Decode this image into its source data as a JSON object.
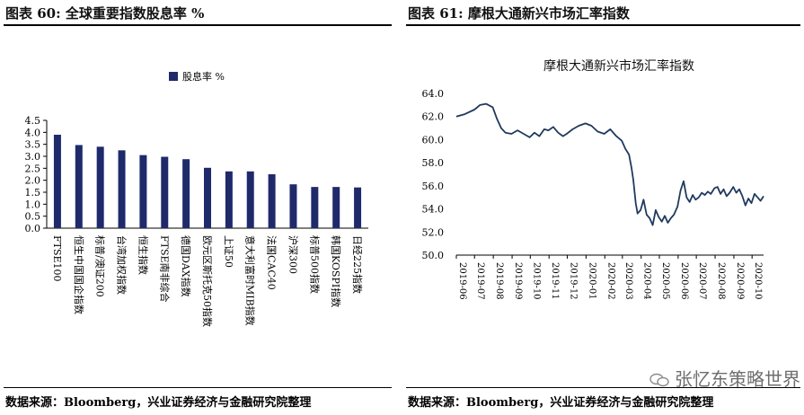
{
  "left": {
    "figure_title": "图表 60: 全球重要指数股息率 %",
    "source": "数据来源：Bloomberg，兴业证券经济与金融研究院整理"
  },
  "right": {
    "figure_title": "图表 61: 摩根大通新兴市场汇率指数",
    "source": "数据来源：Bloomberg，兴业证券经济与金融研究院整理"
  },
  "watermark": "张忆东策略世界",
  "colors": {
    "bar": "#1f2a6b",
    "line": "#1f3a5f"
  },
  "chart_data": [
    {
      "type": "bar",
      "legend": [
        "股息率 %"
      ],
      "legend_position": "top-center",
      "categories": [
        "FTSE100",
        "恒生中国国企指数",
        "标普/澳证200",
        "台湾加权指数",
        "恒生指数",
        "FTSE南非综合",
        "德国DAX指数",
        "欧元区斯托克50指数",
        "上证50",
        "意大利富时MIB指数",
        "法国CAC40",
        "沪深300",
        "标普500指数",
        "韩国KOSPI指数",
        "日经225指数"
      ],
      "values": [
        3.9,
        3.47,
        3.4,
        3.25,
        3.05,
        2.98,
        2.88,
        2.52,
        2.37,
        2.37,
        2.25,
        1.83,
        1.72,
        1.72,
        1.7
      ],
      "ylim": [
        0,
        4.5
      ],
      "yticks": [
        "0.0",
        "0.5",
        "1.0",
        "1.5",
        "2.0",
        "2.5",
        "3.0",
        "3.5",
        "4.0",
        "4.5"
      ]
    },
    {
      "type": "line",
      "title": "摩根大通新兴市场汇率指数",
      "ylim": [
        50,
        64
      ],
      "yticks": [
        "50.0",
        "52.0",
        "54.0",
        "56.0",
        "58.0",
        "60.0",
        "62.0",
        "64.0"
      ],
      "xticks": [
        "2019-06",
        "2019-07",
        "2019-08",
        "2019-09",
        "2019-10",
        "2019-11",
        "2019-12",
        "2020-01",
        "2020-02",
        "2020-03",
        "2020-04",
        "2020-05",
        "2020-06",
        "2020-07",
        "2020-08",
        "2020-09",
        "2020-10"
      ],
      "x": [
        "2019-06-01",
        "2019-06-15",
        "2019-07-01",
        "2019-07-10",
        "2019-07-20",
        "2019-07-31",
        "2019-08-07",
        "2019-08-14",
        "2019-08-21",
        "2019-08-31",
        "2019-09-10",
        "2019-09-20",
        "2019-09-30",
        "2019-10-08",
        "2019-10-16",
        "2019-10-24",
        "2019-10-31",
        "2019-11-08",
        "2019-11-16",
        "2019-11-24",
        "2019-11-30",
        "2019-12-10",
        "2019-12-20",
        "2019-12-31",
        "2020-01-10",
        "2020-01-20",
        "2020-01-31",
        "2020-02-10",
        "2020-02-20",
        "2020-02-29",
        "2020-03-06",
        "2020-03-12",
        "2020-03-16",
        "2020-03-19",
        "2020-03-23",
        "2020-03-26",
        "2020-03-31",
        "2020-04-05",
        "2020-04-10",
        "2020-04-15",
        "2020-04-20",
        "2020-04-25",
        "2020-04-30",
        "2020-05-05",
        "2020-05-10",
        "2020-05-15",
        "2020-05-20",
        "2020-05-25",
        "2020-05-31",
        "2020-06-05",
        "2020-06-10",
        "2020-06-15",
        "2020-06-20",
        "2020-06-25",
        "2020-06-30",
        "2020-07-05",
        "2020-07-10",
        "2020-07-15",
        "2020-07-20",
        "2020-07-25",
        "2020-07-31",
        "2020-08-05",
        "2020-08-10",
        "2020-08-15",
        "2020-08-20",
        "2020-08-25",
        "2020-08-31",
        "2020-09-05",
        "2020-09-10",
        "2020-09-15",
        "2020-09-20",
        "2020-09-25",
        "2020-09-30",
        "2020-10-05",
        "2020-10-10",
        "2020-10-15",
        "2020-10-20"
      ],
      "y": [
        62.0,
        62.2,
        62.6,
        63.0,
        63.1,
        62.8,
        61.8,
        61.0,
        60.6,
        60.5,
        60.8,
        60.5,
        60.2,
        60.6,
        60.3,
        60.9,
        60.8,
        61.1,
        60.6,
        60.3,
        60.5,
        60.9,
        61.2,
        61.4,
        61.2,
        60.7,
        60.5,
        60.9,
        60.3,
        59.9,
        59.2,
        58.7,
        57.6,
        56.5,
        54.5,
        53.6,
        53.9,
        54.8,
        53.5,
        53.2,
        52.6,
        53.9,
        53.3,
        52.9,
        53.4,
        52.8,
        53.2,
        53.5,
        54.2,
        55.6,
        56.4,
        55.0,
        54.6,
        55.2,
        54.8,
        55.0,
        55.4,
        55.2,
        55.5,
        55.3,
        55.8,
        55.9,
        55.3,
        55.7,
        55.1,
        55.4,
        55.9,
        55.4,
        55.7,
        55.1,
        54.3,
        54.9,
        54.5,
        55.3,
        55.0,
        54.7,
        55.1
      ]
    }
  ]
}
